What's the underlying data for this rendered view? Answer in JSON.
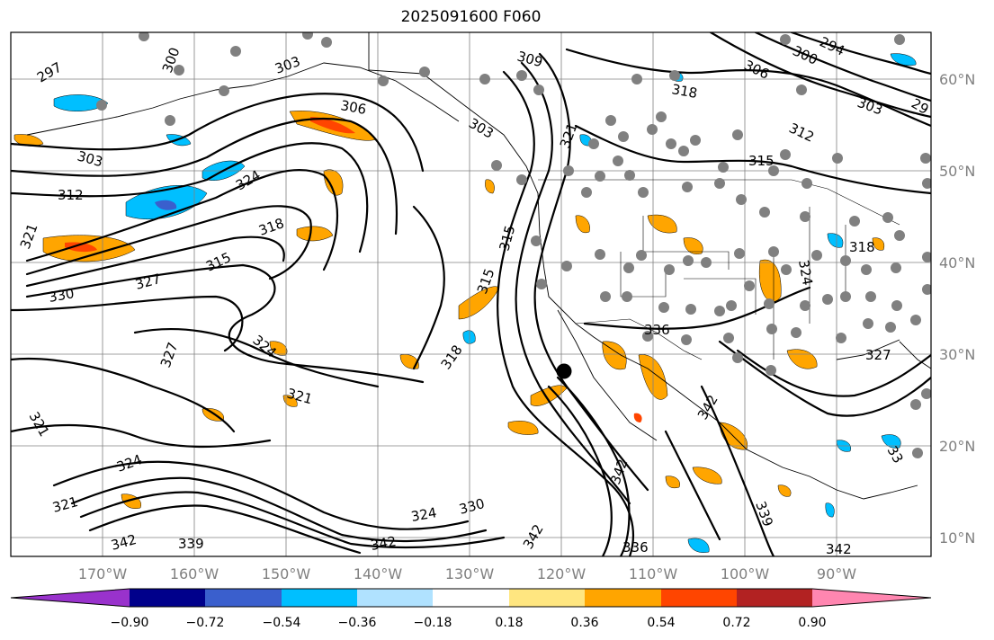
{
  "title": "2025091600 F060",
  "lon_labels": [
    "170°W",
    "160°W",
    "150°W",
    "140°W",
    "130°W",
    "120°W",
    "110°W",
    "100°W",
    "90°W"
  ],
  "lat_labels": [
    "60°N",
    "50°N",
    "40°N",
    "30°N",
    "20°N",
    "10°N"
  ],
  "colorbar": {
    "ticks": [
      "−0.90",
      "−0.72",
      "−0.54",
      "−0.36",
      "−0.18",
      "0.18",
      "0.36",
      "0.54",
      "0.72",
      "0.90"
    ],
    "colors": [
      "#9932cc",
      "#00008b",
      "#3a5fcd",
      "#00bfff",
      "#b0e2ff",
      "#ffffff",
      "#ffe680",
      "#ffa500",
      "#ff4500",
      "#b22222",
      "#ff86b0"
    ]
  },
  "contour_labels": [
    {
      "text": "297"
    },
    {
      "text": "300"
    },
    {
      "text": "303"
    },
    {
      "text": "303"
    },
    {
      "text": "306"
    },
    {
      "text": "309"
    },
    {
      "text": "312"
    },
    {
      "text": "321"
    },
    {
      "text": "327"
    },
    {
      "text": "330"
    },
    {
      "text": "315"
    },
    {
      "text": "318"
    },
    {
      "text": "324"
    },
    {
      "text": "324"
    },
    {
      "text": "321"
    },
    {
      "text": "327"
    },
    {
      "text": "321"
    },
    {
      "text": "321"
    },
    {
      "text": "324"
    },
    {
      "text": "342"
    },
    {
      "text": "339"
    },
    {
      "text": "342"
    },
    {
      "text": "324"
    },
    {
      "text": "330"
    },
    {
      "text": "342"
    },
    {
      "text": "336"
    },
    {
      "text": "339"
    },
    {
      "text": "342"
    },
    {
      "text": "336"
    },
    {
      "text": "342"
    },
    {
      "text": "318"
    },
    {
      "text": "315"
    },
    {
      "text": "303"
    },
    {
      "text": "321"
    },
    {
      "text": "318"
    },
    {
      "text": "315"
    },
    {
      "text": "312"
    },
    {
      "text": "306"
    },
    {
      "text": "300"
    },
    {
      "text": "294"
    },
    {
      "text": "303"
    },
    {
      "text": "29"
    },
    {
      "text": "318"
    },
    {
      "text": "324"
    },
    {
      "text": "327"
    },
    {
      "text": "33"
    },
    {
      "text": "342"
    },
    {
      "text": "315"
    }
  ],
  "marker": {
    "type": "dot",
    "color": "#000000"
  }
}
